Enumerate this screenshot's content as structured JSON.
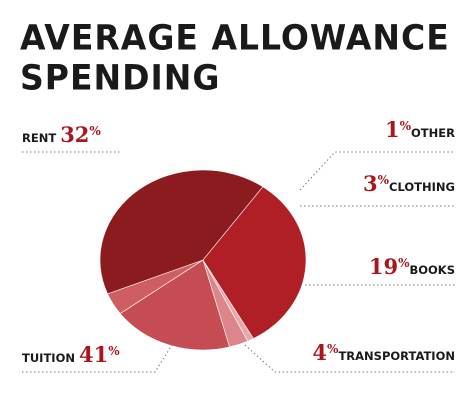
{
  "title": "Average Allowance Spending",
  "colors": {
    "text": "#1a1a1a",
    "accent": "#a8171d",
    "leader": "#777777"
  },
  "chart_data": {
    "type": "pie",
    "title": "Average Allowance Spending",
    "unit": "%",
    "slices": [
      {
        "label": "RENT",
        "value": 32,
        "color": "#b01f25"
      },
      {
        "label": "OTHER",
        "value": 1,
        "color": "#e8a9ac"
      },
      {
        "label": "CLOTHING",
        "value": 3,
        "color": "#dc868b"
      },
      {
        "label": "BOOKS",
        "value": 19,
        "color": "#c44c52"
      },
      {
        "label": "TRANSPORTATION",
        "value": 4,
        "color": "#cf5e63"
      },
      {
        "label": "TUITION",
        "value": 41,
        "color": "#8c1b1f"
      }
    ]
  }
}
